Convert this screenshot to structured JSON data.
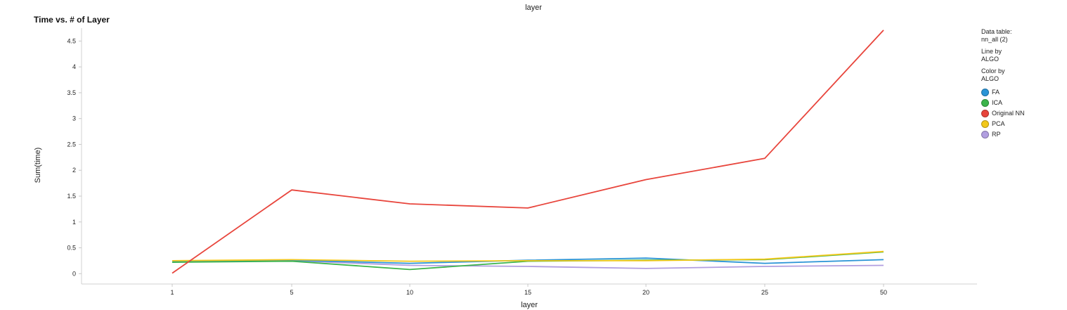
{
  "header": {
    "top_label": "layer",
    "title": "Time vs. # of Layer"
  },
  "legend": {
    "data_table_label": "Data table:",
    "data_table_value": "nn_all (2)",
    "line_by_label": "Line by",
    "line_by_value": "ALGO",
    "color_by_label": "Color by",
    "color_by_value": "ALGO"
  },
  "chart_data": {
    "type": "line",
    "title": "Time vs. # of Layer",
    "xlabel": "layer",
    "ylabel": "Sum(time)",
    "categories": [
      "1",
      "5",
      "10",
      "15",
      "20",
      "25",
      "50"
    ],
    "ylim": [
      -0.2,
      4.75
    ],
    "yticks": [
      0,
      0.5,
      1,
      1.5,
      2,
      2.5,
      3,
      3.5,
      4,
      4.5
    ],
    "ytick_labels": [
      "0",
      "0.5",
      "1",
      "1.5",
      "2",
      "2.5",
      "3",
      "3.5",
      "4",
      "4.5"
    ],
    "grid": false,
    "legend_position": "right",
    "series": [
      {
        "name": "FA",
        "color": "#2a94d6",
        "values": [
          0.23,
          0.26,
          0.2,
          0.26,
          0.3,
          0.2,
          0.27
        ]
      },
      {
        "name": "ICA",
        "color": "#3cb44b",
        "values": [
          0.22,
          0.24,
          0.08,
          0.24,
          0.26,
          0.27,
          0.42
        ]
      },
      {
        "name": "Original NN",
        "color": "#e8453c",
        "values": [
          0.01,
          1.62,
          1.35,
          1.27,
          1.82,
          2.23,
          4.71
        ]
      },
      {
        "name": "PCA",
        "color": "#f2c81a",
        "values": [
          0.25,
          0.27,
          0.24,
          0.25,
          0.25,
          0.28,
          0.43
        ]
      },
      {
        "name": "RP",
        "color": "#b19ee0",
        "values": [
          0.24,
          0.25,
          0.16,
          0.14,
          0.1,
          0.14,
          0.16
        ]
      }
    ]
  }
}
